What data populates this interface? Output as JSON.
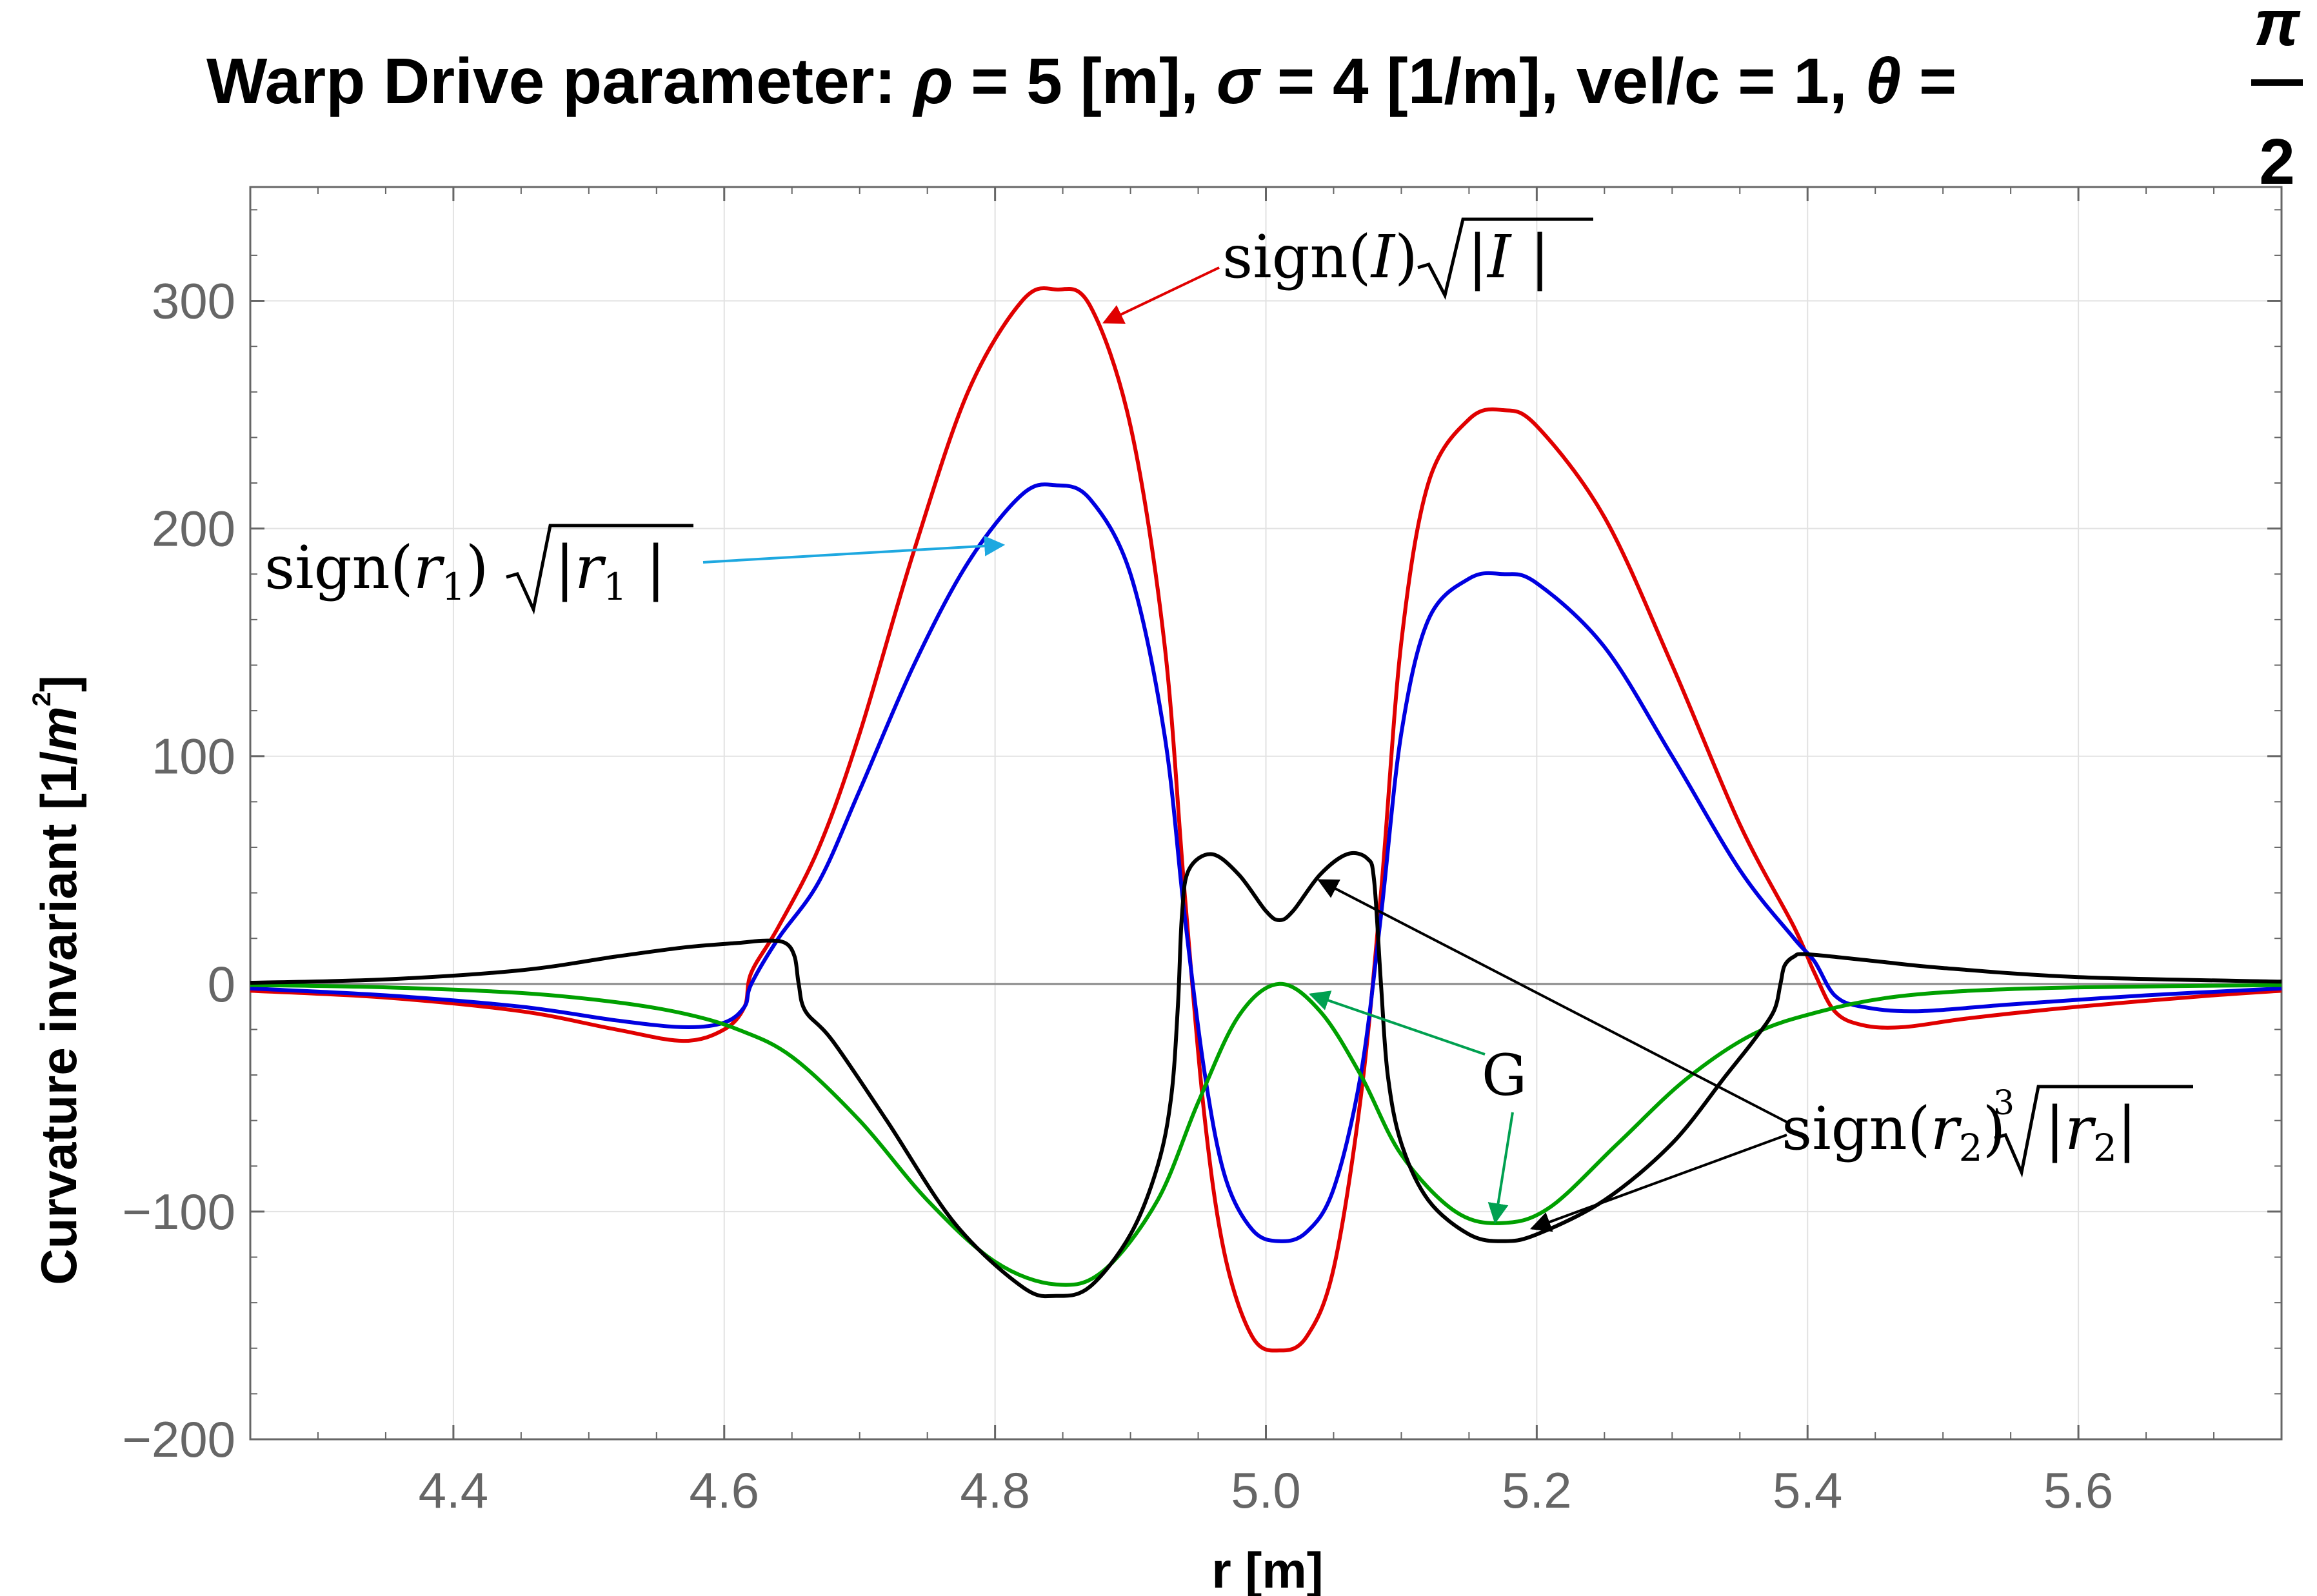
{
  "chart_data": {
    "type": "line",
    "title_prefix": "Warp Drive parameter: ",
    "title_params": [
      {
        "sym": "ρ",
        "rest": " = 5 [m], "
      },
      {
        "sym": "σ",
        "rest": " = 4 [1/m], vel/c = 1, "
      },
      {
        "sym": "θ",
        "rest": " = "
      }
    ],
    "title_frac_num": "π",
    "title_frac_den": "2",
    "xlabel": "r [m]",
    "ylabel_prefix": "Curvature invariant [1/",
    "ylabel_unit": "m",
    "ylabel_sup": "2",
    "ylabel_suffix": "]",
    "xlim": [
      4.25,
      5.75
    ],
    "ylim": [
      -200,
      350
    ],
    "x_ticks": [
      "4.4",
      "4.6",
      "4.8",
      "5.0",
      "5.2",
      "5.4",
      "5.6"
    ],
    "y_ticks": [
      "300",
      "200",
      "100",
      "0",
      "−100",
      "−200"
    ],
    "grid": true,
    "series": [
      {
        "color": "#e00000",
        "points": [
          [
            4.25,
            -3
          ],
          [
            4.35,
            -6
          ],
          [
            4.45,
            -12
          ],
          [
            4.52,
            -20
          ],
          [
            4.57,
            -25
          ],
          [
            4.6,
            -20
          ],
          [
            4.615,
            -10
          ],
          [
            4.62,
            5
          ],
          [
            4.64,
            25
          ],
          [
            4.67,
            60
          ],
          [
            4.7,
            110
          ],
          [
            4.74,
            190
          ],
          [
            4.78,
            260
          ],
          [
            4.82,
            300
          ],
          [
            4.845,
            305
          ],
          [
            4.87,
            298
          ],
          [
            4.9,
            245
          ],
          [
            4.925,
            150
          ],
          [
            4.94,
            40
          ],
          [
            4.955,
            -60
          ],
          [
            4.97,
            -120
          ],
          [
            4.99,
            -155
          ],
          [
            5.01,
            -161
          ],
          [
            5.03,
            -155
          ],
          [
            5.05,
            -125
          ],
          [
            5.07,
            -50
          ],
          [
            5.085,
            40
          ],
          [
            5.1,
            150
          ],
          [
            5.12,
            220
          ],
          [
            5.15,
            248
          ],
          [
            5.175,
            252
          ],
          [
            5.2,
            245
          ],
          [
            5.25,
            205
          ],
          [
            5.3,
            140
          ],
          [
            5.35,
            70
          ],
          [
            5.39,
            25
          ],
          [
            5.405,
            5
          ],
          [
            5.42,
            -12
          ],
          [
            5.44,
            -18
          ],
          [
            5.47,
            -19
          ],
          [
            5.52,
            -15
          ],
          [
            5.6,
            -10
          ],
          [
            5.7,
            -5
          ],
          [
            5.75,
            -3
          ]
        ]
      },
      {
        "color": "#0000e0",
        "points": [
          [
            4.25,
            -2
          ],
          [
            4.35,
            -5
          ],
          [
            4.45,
            -10
          ],
          [
            4.52,
            -16
          ],
          [
            4.57,
            -19
          ],
          [
            4.6,
            -17
          ],
          [
            4.615,
            -10
          ],
          [
            4.62,
            0
          ],
          [
            4.64,
            20
          ],
          [
            4.67,
            45
          ],
          [
            4.7,
            85
          ],
          [
            4.74,
            140
          ],
          [
            4.78,
            185
          ],
          [
            4.82,
            215
          ],
          [
            4.845,
            219
          ],
          [
            4.87,
            213
          ],
          [
            4.9,
            180
          ],
          [
            4.925,
            110
          ],
          [
            4.94,
            30
          ],
          [
            4.955,
            -40
          ],
          [
            4.97,
            -85
          ],
          [
            4.99,
            -108
          ],
          [
            5.01,
            -113
          ],
          [
            5.03,
            -109
          ],
          [
            5.05,
            -90
          ],
          [
            5.07,
            -40
          ],
          [
            5.085,
            30
          ],
          [
            5.1,
            110
          ],
          [
            5.12,
            160
          ],
          [
            5.15,
            178
          ],
          [
            5.175,
            180
          ],
          [
            5.2,
            176
          ],
          [
            5.25,
            148
          ],
          [
            5.3,
            100
          ],
          [
            5.35,
            50
          ],
          [
            5.39,
            20
          ],
          [
            5.405,
            10
          ],
          [
            5.42,
            -5
          ],
          [
            5.44,
            -10
          ],
          [
            5.48,
            -12
          ],
          [
            5.55,
            -9
          ],
          [
            5.65,
            -5
          ],
          [
            5.75,
            -2
          ]
        ]
      },
      {
        "color": "#00a000",
        "points": [
          [
            4.25,
            -0.5
          ],
          [
            4.35,
            -1.5
          ],
          [
            4.45,
            -4
          ],
          [
            4.52,
            -8
          ],
          [
            4.57,
            -13
          ],
          [
            4.61,
            -20
          ],
          [
            4.65,
            -32
          ],
          [
            4.7,
            -60
          ],
          [
            4.75,
            -95
          ],
          [
            4.8,
            -122
          ],
          [
            4.845,
            -132
          ],
          [
            4.88,
            -126
          ],
          [
            4.92,
            -95
          ],
          [
            4.95,
            -52
          ],
          [
            4.98,
            -14
          ],
          [
            5.01,
            0
          ],
          [
            5.04,
            -12
          ],
          [
            5.07,
            -40
          ],
          [
            5.1,
            -75
          ],
          [
            5.14,
            -100
          ],
          [
            5.175,
            -105
          ],
          [
            5.21,
            -98
          ],
          [
            5.26,
            -70
          ],
          [
            5.31,
            -42
          ],
          [
            5.36,
            -22
          ],
          [
            5.41,
            -12
          ],
          [
            5.46,
            -6
          ],
          [
            5.52,
            -3
          ],
          [
            5.6,
            -1.5
          ],
          [
            5.75,
            -0.5
          ]
        ]
      },
      {
        "color": "#000000",
        "points": [
          [
            4.25,
            0.5
          ],
          [
            4.35,
            2
          ],
          [
            4.45,
            6
          ],
          [
            4.52,
            12
          ],
          [
            4.57,
            16
          ],
          [
            4.61,
            18
          ],
          [
            4.63,
            19
          ],
          [
            4.645,
            18
          ],
          [
            4.652,
            12
          ],
          [
            4.655,
            0
          ],
          [
            4.66,
            -12
          ],
          [
            4.68,
            -25
          ],
          [
            4.72,
            -60
          ],
          [
            4.77,
            -105
          ],
          [
            4.82,
            -133
          ],
          [
            4.845,
            -137
          ],
          [
            4.87,
            -133
          ],
          [
            4.9,
            -110
          ],
          [
            4.92,
            -80
          ],
          [
            4.93,
            -50
          ],
          [
            4.935,
            -10
          ],
          [
            4.938,
            30
          ],
          [
            4.943,
            50
          ],
          [
            4.96,
            57
          ],
          [
            4.98,
            48
          ],
          [
            5.0,
            32
          ],
          [
            5.01,
            28
          ],
          [
            5.02,
            32
          ],
          [
            5.04,
            48
          ],
          [
            5.06,
            57
          ],
          [
            5.075,
            55
          ],
          [
            5.08,
            45
          ],
          [
            5.085,
            0
          ],
          [
            5.09,
            -40
          ],
          [
            5.1,
            -70
          ],
          [
            5.12,
            -95
          ],
          [
            5.15,
            -110
          ],
          [
            5.175,
            -113
          ],
          [
            5.2,
            -110
          ],
          [
            5.25,
            -95
          ],
          [
            5.3,
            -70
          ],
          [
            5.34,
            -40
          ],
          [
            5.36,
            -25
          ],
          [
            5.375,
            -12
          ],
          [
            5.38,
            0
          ],
          [
            5.383,
            8
          ],
          [
            5.39,
            12
          ],
          [
            5.4,
            13
          ],
          [
            5.45,
            10
          ],
          [
            5.5,
            7
          ],
          [
            5.6,
            3
          ],
          [
            5.75,
            1
          ]
        ]
      }
    ],
    "annotations": [
      {
        "func": "sign",
        "arg": "I",
        "radical_index": "",
        "radical_body": "|I |",
        "color": "#e00000"
      },
      {
        "func": "sign",
        "arg": "r",
        "arg_sub": "1",
        "radical_index": "",
        "radical_body": "|r",
        "radical_sub": "1",
        "radical_tail": " |",
        "color": "#1ea8e0"
      },
      {
        "text": "G",
        "color": "#00a050"
      },
      {
        "func": "sign",
        "arg": "r",
        "arg_sub": "2",
        "radical_index": "3",
        "radical_body": "|r",
        "radical_sub": "2",
        "radical_tail": "|",
        "color": "#000000"
      }
    ]
  }
}
